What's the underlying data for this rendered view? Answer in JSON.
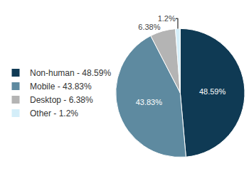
{
  "chart_data": {
    "type": "pie",
    "categories": [
      "Non-human - 48.59%",
      "Mobile - 43.83%",
      "Desktop - 6.38%",
      "Other - 1.2%"
    ],
    "values": [
      48.59,
      43.83,
      6.38,
      1.2
    ],
    "value_labels": [
      "48.59%",
      "43.83%",
      "6.38%",
      "1.2%"
    ],
    "colors": [
      "#0f3a54",
      "#5e8aa0",
      "#b4b4b4",
      "#d4eef9"
    ],
    "data_labels": true,
    "legend": "left"
  }
}
